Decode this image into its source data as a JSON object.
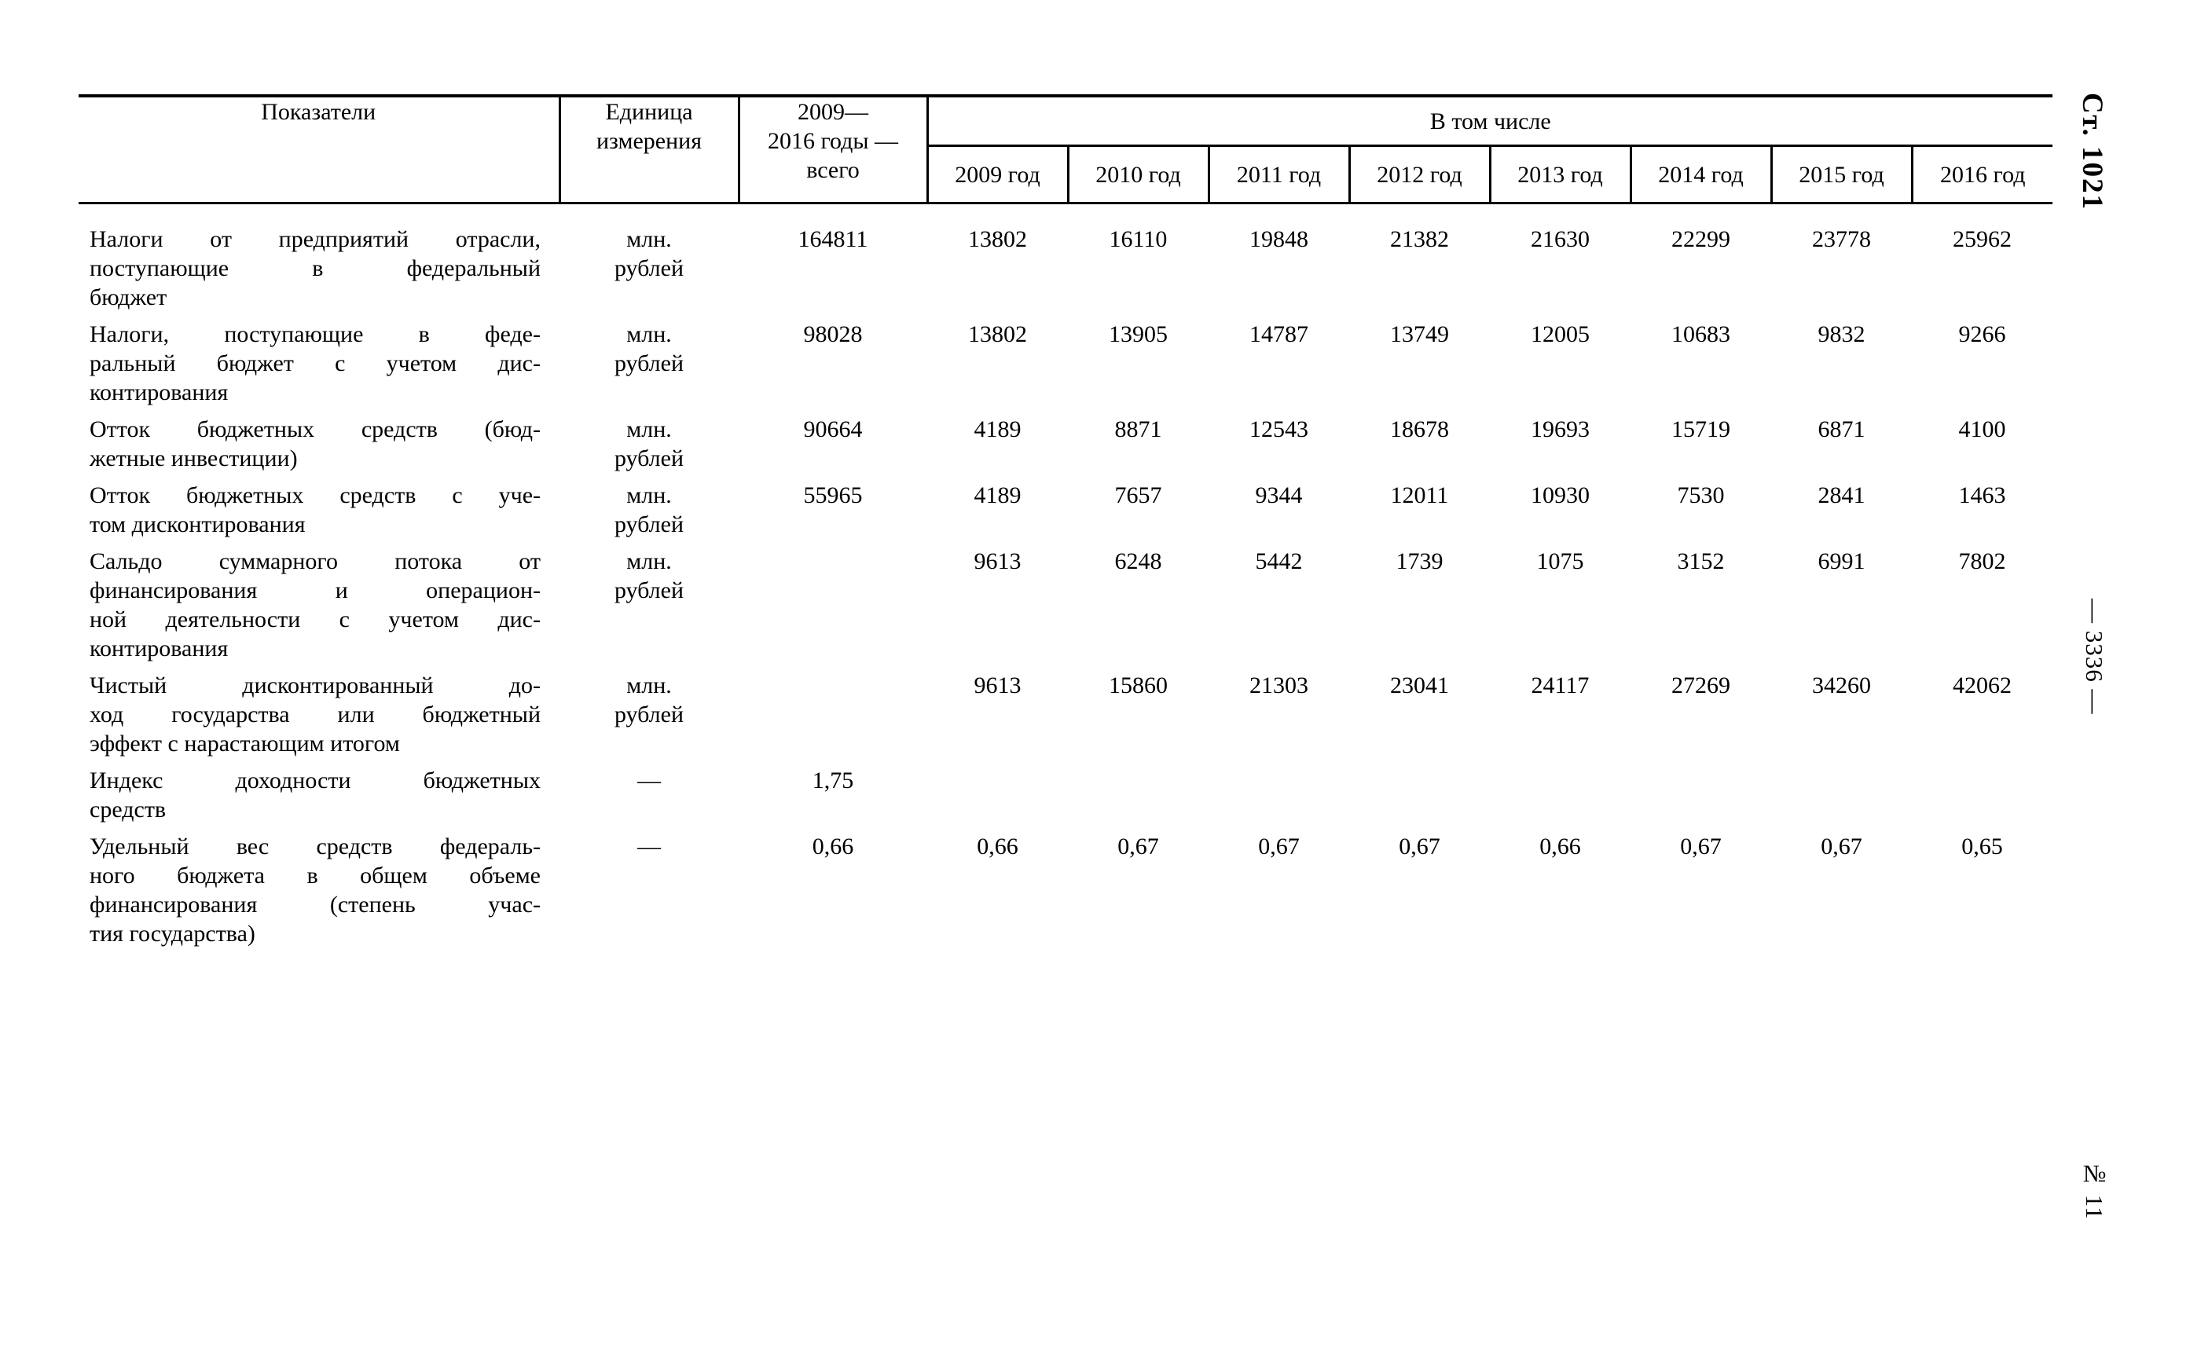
{
  "margin": {
    "article_label": "Ст. 1021",
    "page_number": "— 3336 —",
    "issue_number": "№ 11"
  },
  "table": {
    "headers": {
      "indicators": "Показатели",
      "unit_lines": [
        "Единица",
        "измерения"
      ],
      "total_lines": [
        "2009—",
        "2016 годы —",
        "всего"
      ],
      "including": "В том числе",
      "years": [
        "2009 год",
        "2010 год",
        "2011 год",
        "2012 год",
        "2013 год",
        "2014 год",
        "2015 год",
        "2016 год"
      ]
    },
    "rows": [
      {
        "indicator_lines": [
          "Налоги от предприятий отрасли,",
          "поступающие в федеральный",
          "бюджет"
        ],
        "indicator": "Налоги от предприятий отрасли, поступающие в федеральный бюджет",
        "unit_lines": [
          "млн.",
          "рублей"
        ],
        "total": "164811",
        "values": [
          "13802",
          "16110",
          "19848",
          "21382",
          "21630",
          "22299",
          "23778",
          "25962"
        ]
      },
      {
        "indicator_lines": [
          "Налоги, поступающие в феде-",
          "ральный бюджет с учетом дис-",
          "контирования"
        ],
        "indicator": "Налоги, поступающие в федеральный бюджет с учетом дисконтирования",
        "unit_lines": [
          "млн.",
          "рублей"
        ],
        "total": "98028",
        "values": [
          "13802",
          "13905",
          "14787",
          "13749",
          "12005",
          "10683",
          "9832",
          "9266"
        ]
      },
      {
        "indicator_lines": [
          "Отток бюджетных средств (бюд-",
          "жетные инвестиции)"
        ],
        "indicator": "Отток бюджетных средств (бюджетные инвестиции)",
        "unit_lines": [
          "млн.",
          "рублей"
        ],
        "total": "90664",
        "values": [
          "4189",
          "8871",
          "12543",
          "18678",
          "19693",
          "15719",
          "6871",
          "4100"
        ]
      },
      {
        "indicator_lines": [
          "Отток бюджетных средств с уче-",
          "том дисконтирования"
        ],
        "indicator": "Отток бюджетных средств с учетом дисконтирования",
        "unit_lines": [
          "млн.",
          "рублей"
        ],
        "total": "55965",
        "values": [
          "4189",
          "7657",
          "9344",
          "12011",
          "10930",
          "7530",
          "2841",
          "1463"
        ]
      },
      {
        "indicator_lines": [
          "Сальдо суммарного потока от",
          "финансирования и операцион-",
          "ной деятельности с учетом дис-",
          "контирования"
        ],
        "indicator": "Сальдо суммарного потока от финансирования и операционной деятельности с учетом дисконтирования",
        "unit_lines": [
          "млн.",
          "рублей"
        ],
        "total": "",
        "values": [
          "9613",
          "6248",
          "5442",
          "1739",
          "1075",
          "3152",
          "6991",
          "7802"
        ]
      },
      {
        "indicator_lines": [
          "Чистый дисконтированный до-",
          "ход государства или бюджетный",
          "эффект с нарастающим итогом"
        ],
        "indicator": "Чистый дисконтированный доход государства или бюджетный эффект с нарастающим итогом",
        "unit_lines": [
          "млн.",
          "рублей"
        ],
        "total": "",
        "values": [
          "9613",
          "15860",
          "21303",
          "23041",
          "24117",
          "27269",
          "34260",
          "42062"
        ]
      },
      {
        "indicator_lines": [
          "Индекс доходности бюджетных",
          "средств"
        ],
        "indicator": "Индекс доходности бюджетных средств",
        "unit_lines": [
          "—"
        ],
        "total": "1,75",
        "values": [
          "",
          "",
          "",
          "",
          "",
          "",
          "",
          ""
        ]
      },
      {
        "indicator_lines": [
          "Удельный вес средств федераль-",
          "ного бюджета в общем объеме",
          "финансирования (степень учас-",
          "тия государства)"
        ],
        "indicator": "Удельный вес средств федерального бюджета в общем объеме финансирования (степень участия государства)",
        "unit_lines": [
          "—"
        ],
        "total": "0,66",
        "values": [
          "0,66",
          "0,67",
          "0,67",
          "0,67",
          "0,66",
          "0,67",
          "0,67",
          "0,65"
        ]
      }
    ]
  }
}
